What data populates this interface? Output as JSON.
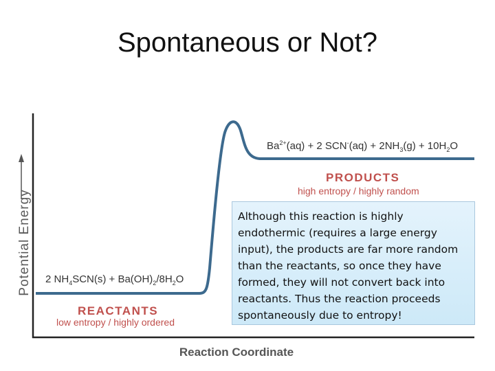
{
  "title": "Spontaneous or Not?",
  "y_axis_label": "Potential  Energy",
  "x_axis_label": "Reaction Coordinate",
  "products": {
    "equation_parts": [
      "Ba",
      "2+",
      "(aq) + 2 SCN",
      "-",
      "(aq) + 2NH",
      "3",
      "(g) + 10H",
      "2",
      "O"
    ],
    "heading": "PRODUCTS",
    "subheading": "high entropy / highly random"
  },
  "reactants": {
    "equation_parts": [
      "2 NH",
      "4",
      "SCN(s) + Ba(OH)",
      "2",
      "/8H",
      "2",
      "O"
    ],
    "heading": "REACTANTS",
    "subheading": "low entropy / highly ordered"
  },
  "note": "Although this reaction is highly endothermic (requires a large energy input), the products are far more random than the reactants, so once they have formed, they will not convert back into reactants. Thus the reaction proceeds spontaneously due to entropy!",
  "colors": {
    "curve": "#3d6a8e",
    "label_red": "#c0504d",
    "note_bg": "#d9effa"
  }
}
